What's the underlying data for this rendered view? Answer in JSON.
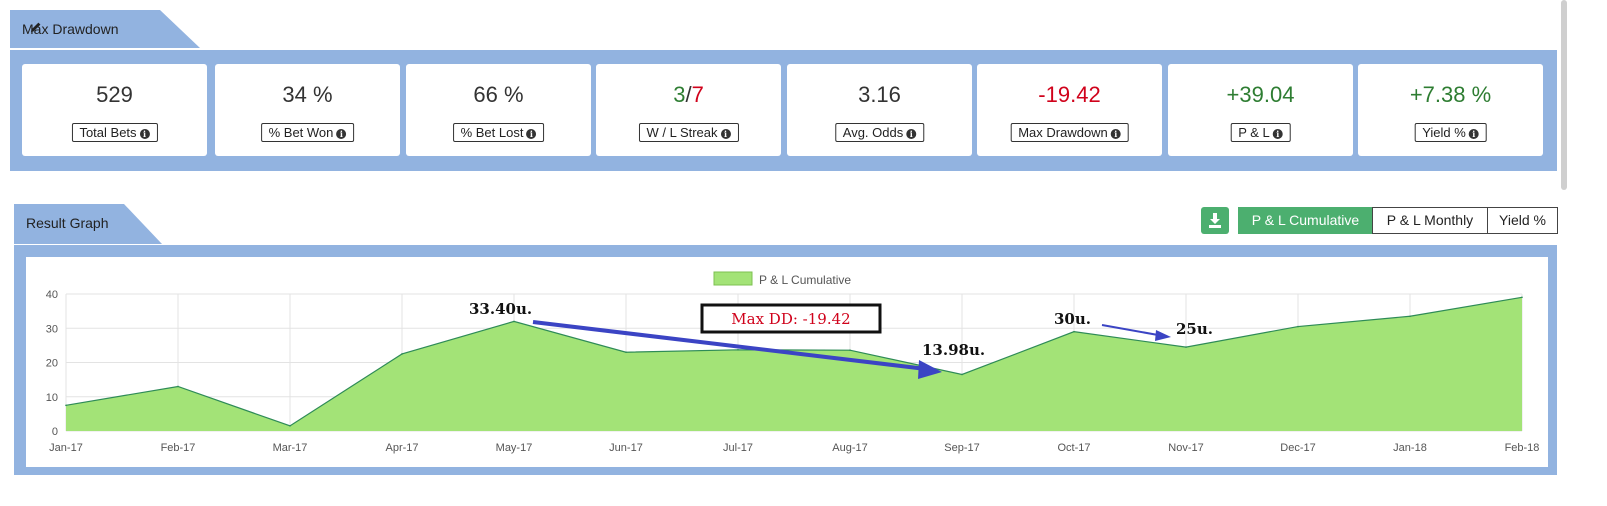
{
  "drawdown_section": {
    "title": "Max Drawdown",
    "pencil_icon": "pencil-icon"
  },
  "stats": [
    {
      "value": "529",
      "label": "Total Bets"
    },
    {
      "value": "34 %",
      "label": "% Bet Won"
    },
    {
      "value": "66 %",
      "label": "% Bet Lost"
    },
    {
      "value_win": "3",
      "value_sep": "/",
      "value_loss": "7",
      "label": "W / L Streak"
    },
    {
      "value": "3.16",
      "label": "Avg. Odds"
    },
    {
      "value": "-19.42",
      "label": "Max Drawdown"
    },
    {
      "value": "+39.04",
      "label": "P & L"
    },
    {
      "value": "+7.38 %",
      "label": "Yield %"
    }
  ],
  "graph_section": {
    "title": "Result Graph",
    "download_icon": "download-icon",
    "buttons": [
      "P & L Cumulative",
      "P & L Monthly",
      "Yield %"
    ],
    "active_button": "P & L Cumulative"
  },
  "colors": {
    "panel_blue": "#92b3e0",
    "area_fill": "#a3e377",
    "area_line": "#2e8b57",
    "accent_green": "#4caf6f",
    "positive": "#2e7d32",
    "negative": "#d0021b",
    "arrow": "#3b44c4"
  },
  "chart_data": {
    "type": "area",
    "legend": "P & L Cumulative",
    "categories": [
      "Jan-17",
      "Feb-17",
      "Mar-17",
      "Apr-17",
      "May-17",
      "Jun-17",
      "Jul-17",
      "Aug-17",
      "Sep-17",
      "Oct-17",
      "Nov-17",
      "Dec-17",
      "Jan-18",
      "Feb-18"
    ],
    "series": [
      {
        "name": "P & L Cumulative",
        "values": [
          7.5,
          13,
          1.5,
          22.5,
          32,
          23,
          23.7,
          23.6,
          16.5,
          29,
          24.5,
          30.5,
          33.5,
          39.04
        ]
      }
    ],
    "ylim": [
      0,
      40
    ],
    "yticks": [
      0,
      10,
      20,
      30,
      40
    ],
    "grid": true,
    "legend_position": "top-center",
    "annotations": {
      "max_dd_box": "Max DD: -19.42",
      "peak_label": "33.40u.",
      "trough_label": "13.98u.",
      "second_peak_label": "30u.",
      "second_trough_label": "25u."
    }
  }
}
